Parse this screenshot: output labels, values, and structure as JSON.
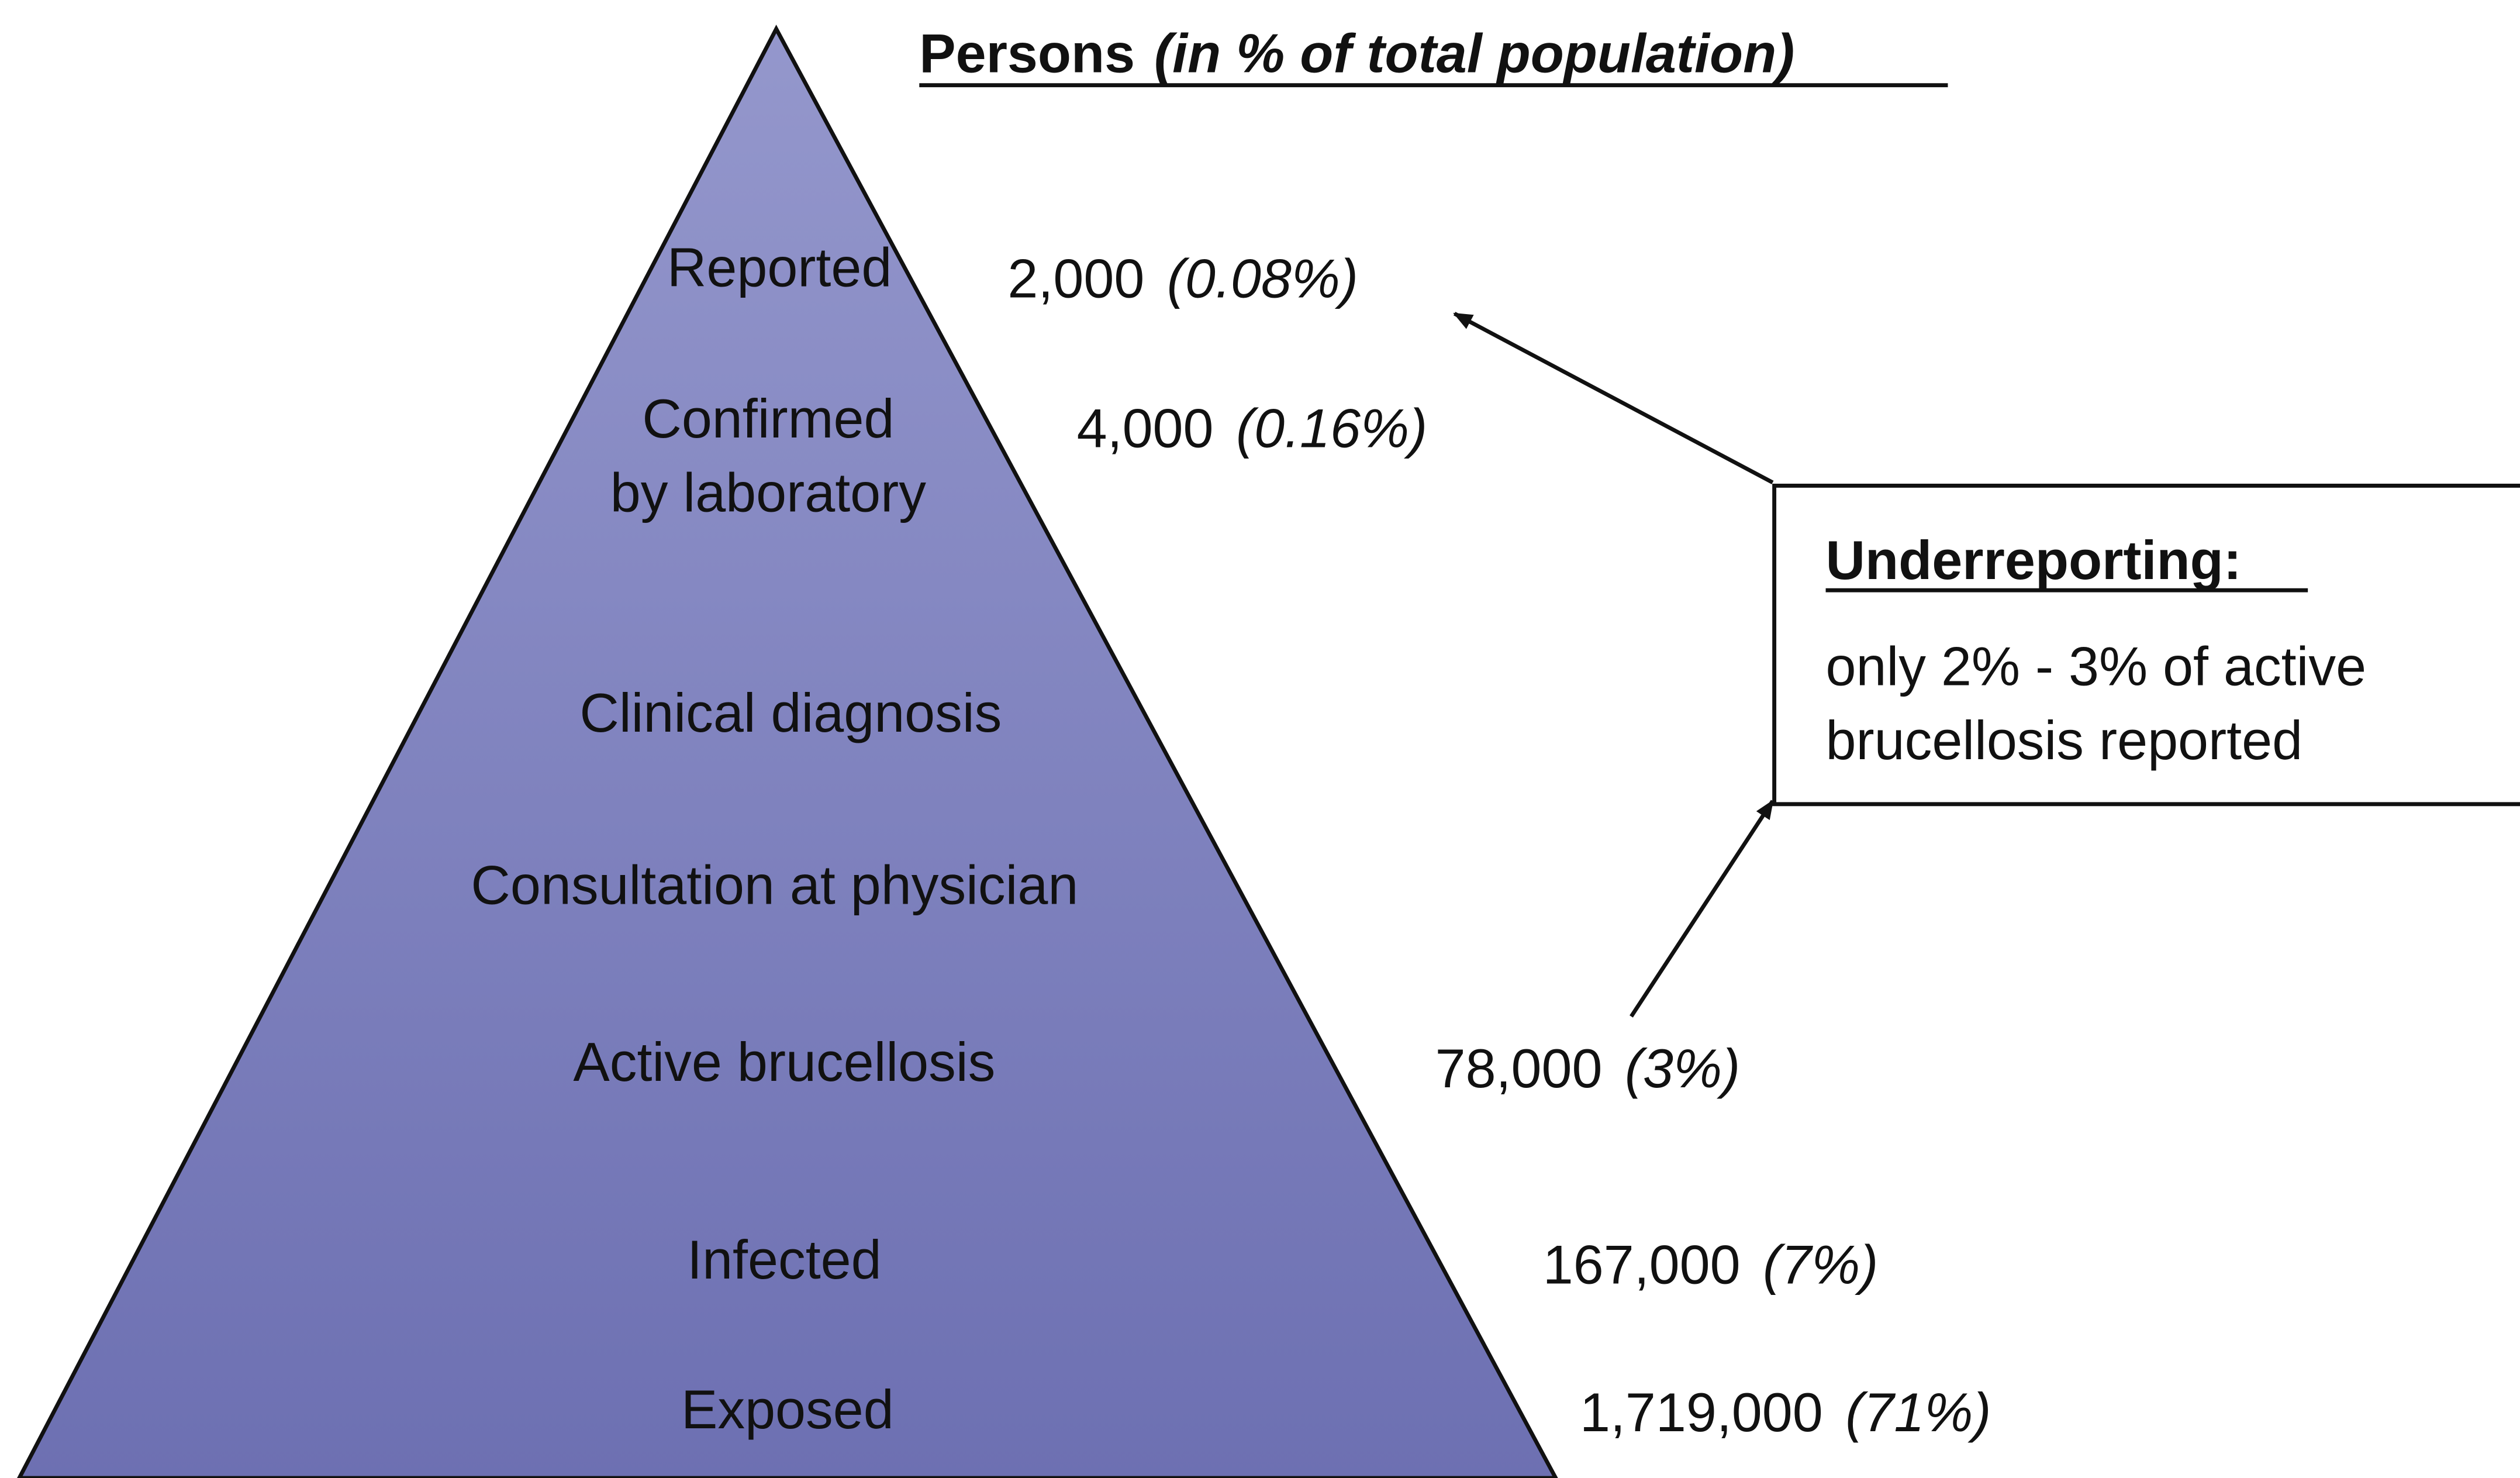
{
  "title": "Persons",
  "title_note": "(in % of total population)",
  "levels": [
    {
      "label_lines": [
        "Reported"
      ],
      "count": "2,000",
      "percent": "(0.08%)"
    },
    {
      "label_lines": [
        "Confirmed",
        "by laboratory"
      ],
      "count": "4,000",
      "percent": "(0.16%)"
    },
    {
      "label_lines": [
        "Clinical diagnosis"
      ]
    },
    {
      "label_lines": [
        "Consultation at physician"
      ]
    },
    {
      "label_lines": [
        "Active brucellosis"
      ],
      "count": "78,000",
      "percent": "(3%)"
    },
    {
      "label_lines": [
        "Infected"
      ],
      "count": "167,000",
      "percent": "(7%)"
    },
    {
      "label_lines": [
        "Exposed"
      ],
      "count": "1,719,000",
      "percent": "(71%)"
    }
  ],
  "callout": {
    "heading": "Underreporting:",
    "text_lines": [
      "only 2% - 3% of active",
      "brucellosis reported"
    ]
  }
}
